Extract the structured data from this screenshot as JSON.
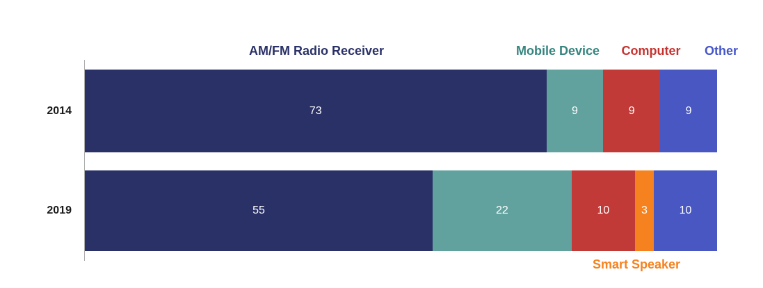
{
  "chart_data": {
    "type": "bar",
    "variant": "horizontal-stacked",
    "title": "",
    "xlabel": "",
    "ylabel": "",
    "xlim": [
      0,
      100
    ],
    "grid": false,
    "legend_position": "inline-annotations-above-and-below-bars",
    "categories": [
      "2014",
      "2019"
    ],
    "series": [
      {
        "name": "AM/FM Radio Receiver",
        "values": [
          73,
          55
        ],
        "color": "#2a3167",
        "label_color": "#2a3167"
      },
      {
        "name": "Mobile Device",
        "values": [
          9,
          22
        ],
        "color": "#62a29e",
        "label_color": "#35847e"
      },
      {
        "name": "Computer",
        "values": [
          9,
          10
        ],
        "color": "#c23a37",
        "label_color": "#c5332f"
      },
      {
        "name": "Smart Speaker",
        "values": [
          0,
          3
        ],
        "color": "#f5821f",
        "label_color": "#f5821f"
      },
      {
        "name": "Other",
        "values": [
          9,
          10
        ],
        "color": "#4857c1",
        "label_color": "#4456c8"
      }
    ],
    "value_labels": {
      "2014": [
        73,
        9,
        9,
        9
      ],
      "2019": [
        55,
        22,
        10,
        3,
        10
      ],
      "color": "#ffffff",
      "note": "zero-value segments have no label"
    },
    "axis_line_color": "#adadad",
    "year_label_color": "#1a1a1a",
    "background_color": "#ffffff"
  }
}
